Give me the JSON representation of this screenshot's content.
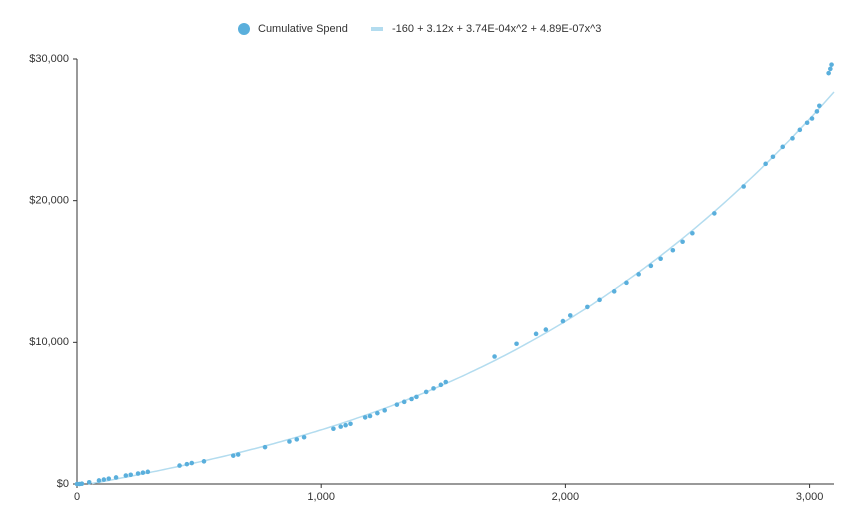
{
  "chart_data": {
    "type": "scatter",
    "series": [
      {
        "name": "Cumulative Spend",
        "color": "#5aafdc",
        "x": [
          0,
          10,
          20,
          50,
          90,
          110,
          130,
          160,
          200,
          220,
          250,
          270,
          290,
          420,
          450,
          470,
          520,
          640,
          660,
          770,
          870,
          900,
          930,
          1050,
          1080,
          1100,
          1120,
          1180,
          1200,
          1230,
          1260,
          1310,
          1340,
          1370,
          1390,
          1430,
          1460,
          1490,
          1510,
          1710,
          1800,
          1880,
          1920,
          1990,
          2020,
          2090,
          2140,
          2200,
          2250,
          2300,
          2350,
          2390,
          2440,
          2480,
          2520,
          2610,
          2730,
          2820,
          2850,
          2890,
          2930,
          2960,
          2990,
          3010,
          3030,
          3040,
          3078,
          3085,
          3090
        ],
        "values": [
          0,
          0,
          20,
          120,
          250,
          310,
          380,
          460,
          600,
          650,
          740,
          800,
          860,
          1300,
          1400,
          1480,
          1600,
          2000,
          2080,
          2600,
          3000,
          3150,
          3300,
          3900,
          4050,
          4150,
          4250,
          4700,
          4800,
          5000,
          5200,
          5600,
          5800,
          6000,
          6150,
          6500,
          6750,
          7000,
          7200,
          9000,
          9900,
          10600,
          10900,
          11500,
          11900,
          12500,
          13000,
          13600,
          14200,
          14800,
          15400,
          15900,
          16500,
          17100,
          17700,
          19100,
          21000,
          22600,
          23100,
          23800,
          24400,
          25000,
          25500,
          25800,
          26300,
          26700,
          29000,
          29300,
          29600
        ]
      }
    ],
    "trendline": {
      "name": "-160 + 3.12x + 3.74E-04x^2 + 4.89E-07x^3",
      "color": "#b3dcef",
      "coefficients": [
        -160,
        3.12,
        0.000374,
        4.89e-07
      ]
    },
    "xlim": [
      0,
      3100
    ],
    "ylim": [
      0,
      30000
    ],
    "xticks": [
      0,
      {
        "value": 1000,
        "label": "1,000"
      },
      {
        "value": 2000,
        "label": "2,000"
      },
      {
        "value": 3000,
        "label": "3,000"
      }
    ],
    "yticks": [
      {
        "value": 0,
        "label": "$0"
      },
      {
        "value": 10000,
        "label": "$10,000"
      },
      {
        "value": 20000,
        "label": "$20,000"
      },
      {
        "value": 30000,
        "label": "$30,000"
      }
    ]
  }
}
